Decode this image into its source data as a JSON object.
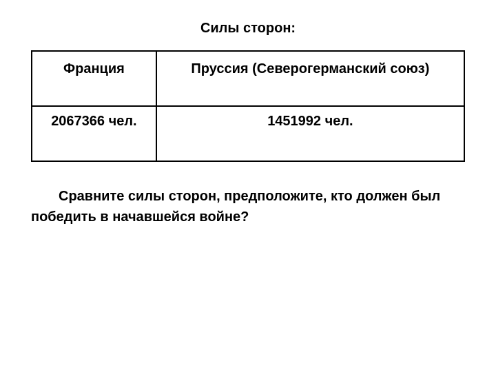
{
  "title": "Силы сторон:",
  "table": {
    "columns": [
      "Франция",
      "Пруссия (Северогерманский союз)"
    ],
    "rows": [
      [
        "2067366 чел.",
        "1451992 чел."
      ]
    ],
    "border_color": "#000000",
    "border_width": 2,
    "text_color": "#000000",
    "font_size": 20,
    "font_weight": "bold"
  },
  "question": "Сравните силы сторон, предположите, кто должен был победить в начавшейся войне?",
  "background_color": "#ffffff"
}
